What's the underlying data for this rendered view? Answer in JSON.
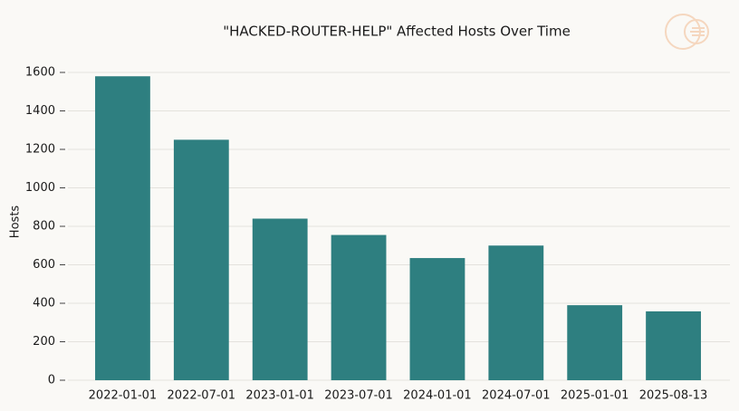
{
  "chart_data": {
    "type": "bar",
    "title": "\"HACKED-ROUTER-HELP\" Affected Hosts Over Time",
    "y_label": "Hosts",
    "categories": [
      "2022-01-01",
      "2022-07-01",
      "2023-01-01",
      "2023-07-01",
      "2024-01-01",
      "2024-07-01",
      "2025-01-01",
      "2025-08-13"
    ],
    "values": [
      1580,
      1250,
      840,
      755,
      635,
      700,
      390,
      358
    ],
    "color": "#2e7f80",
    "ylim": [
      0,
      1600
    ],
    "yticks": [
      0,
      200,
      400,
      600,
      800,
      1000,
      1200,
      1400,
      1600
    ],
    "grid": true
  }
}
